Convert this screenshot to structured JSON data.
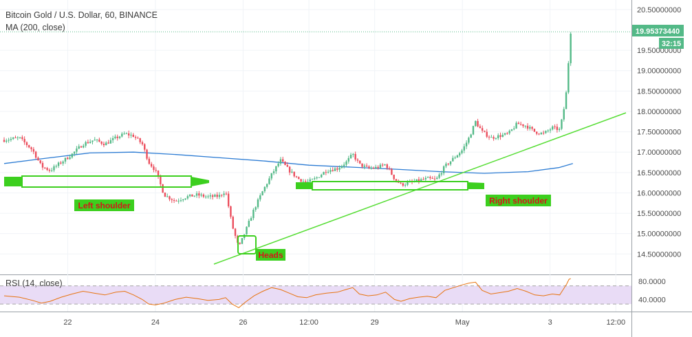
{
  "header": {
    "title": "Bitcoin Gold / U.S. Dollar, 60, BINANCE",
    "ma_label": "MA (200, close)"
  },
  "price_tag": {
    "value": "19.95373440",
    "timer": "32:15"
  },
  "rsi_label": "RSI (14, close)",
  "annotations": {
    "left_shoulder": "Left shoulder",
    "heads": "Heads",
    "right_shoulder": "Right shoulder"
  },
  "colors": {
    "up": "#53b987",
    "down": "#eb4d5c",
    "ma": "#2b7bd3",
    "trend": "#55dd33",
    "label_bg": "#3ccf1e",
    "label_text": "#d4161a",
    "rsi_line": "#e8730e",
    "rsi_band": "#e9dcf6",
    "price_tag": "#53b987"
  },
  "chart_data": [
    {
      "type": "candlestick",
      "title": "Bitcoin Gold / U.S. Dollar, 60, BINANCE",
      "y_ticks": [
        "14.50000000",
        "15.00000000",
        "15.50000000",
        "16.00000000",
        "16.50000000",
        "17.00000000",
        "17.50000000",
        "18.00000000",
        "18.50000000",
        "19.00000000",
        "19.50000000",
        "20.50000000"
      ],
      "ylim": [
        14.1,
        20.65
      ],
      "x_ticks": [
        {
          "label": "22",
          "x": 2
        },
        {
          "label": "24",
          "x": 4
        },
        {
          "label": "26",
          "x": 6
        },
        {
          "label": "12:00",
          "x": 7.5
        },
        {
          "label": "29",
          "x": 9
        },
        {
          "label": "May",
          "x": 11
        },
        {
          "label": "3",
          "x": 13
        },
        {
          "label": "12:00",
          "x": 14.5
        }
      ],
      "xlim": [
        0.55,
        14.95
      ],
      "last_price": 19.9537344,
      "series": [
        {
          "name": "MA (200, close)",
          "kind": "line",
          "points": [
            [
              0.55,
              16.72
            ],
            [
              1.5,
              16.85
            ],
            [
              2.5,
              16.98
            ],
            [
              3.5,
              17.0
            ],
            [
              4.5,
              16.94
            ],
            [
              5.5,
              16.86
            ],
            [
              6.5,
              16.78
            ],
            [
              7.5,
              16.68
            ],
            [
              8.5,
              16.63
            ],
            [
              9.5,
              16.58
            ],
            [
              10.5,
              16.52
            ],
            [
              11.5,
              16.48
            ],
            [
              12.5,
              16.52
            ],
            [
              13.2,
              16.62
            ],
            [
              13.52,
              16.72
            ]
          ]
        },
        {
          "name": "price",
          "kind": "candles",
          "points": [
            [
              0.55,
              17.3
            ],
            [
              0.9,
              17.35
            ],
            [
              1.2,
              17.05
            ],
            [
              1.4,
              16.65
            ],
            [
              1.6,
              16.55
            ],
            [
              1.85,
              16.75
            ],
            [
              2.1,
              16.95
            ],
            [
              2.35,
              17.2
            ],
            [
              2.6,
              17.3
            ],
            [
              2.85,
              17.2
            ],
            [
              3.1,
              17.35
            ],
            [
              3.3,
              17.45
            ],
            [
              3.5,
              17.4
            ],
            [
              3.7,
              17.2
            ],
            [
              3.85,
              16.75
            ],
            [
              4.0,
              16.55
            ],
            [
              4.2,
              15.95
            ],
            [
              4.45,
              15.8
            ],
            [
              4.7,
              15.9
            ],
            [
              4.95,
              15.95
            ],
            [
              5.2,
              15.9
            ],
            [
              5.45,
              15.92
            ],
            [
              5.6,
              16.05
            ],
            [
              5.75,
              15.2
            ],
            [
              5.9,
              14.65
            ],
            [
              6.05,
              15.05
            ],
            [
              6.25,
              15.6
            ],
            [
              6.45,
              16.05
            ],
            [
              6.65,
              16.45
            ],
            [
              6.85,
              16.8
            ],
            [
              7.05,
              16.55
            ],
            [
              7.25,
              16.35
            ],
            [
              7.45,
              16.25
            ],
            [
              7.65,
              16.35
            ],
            [
              7.9,
              16.55
            ],
            [
              8.15,
              16.6
            ],
            [
              8.35,
              16.75
            ],
            [
              8.5,
              16.95
            ],
            [
              8.65,
              16.7
            ],
            [
              8.85,
              16.6
            ],
            [
              9.05,
              16.62
            ],
            [
              9.25,
              16.7
            ],
            [
              9.45,
              16.35
            ],
            [
              9.6,
              16.2
            ],
            [
              9.8,
              16.25
            ],
            [
              10.0,
              16.3
            ],
            [
              10.2,
              16.35
            ],
            [
              10.4,
              16.32
            ],
            [
              10.6,
              16.65
            ],
            [
              10.8,
              16.85
            ],
            [
              11.0,
              17.05
            ],
            [
              11.15,
              17.35
            ],
            [
              11.3,
              17.75
            ],
            [
              11.45,
              17.5
            ],
            [
              11.65,
              17.35
            ],
            [
              11.85,
              17.4
            ],
            [
              12.05,
              17.45
            ],
            [
              12.25,
              17.7
            ],
            [
              12.45,
              17.65
            ],
            [
              12.65,
              17.5
            ],
            [
              12.85,
              17.45
            ],
            [
              13.05,
              17.6
            ],
            [
              13.22,
              17.55
            ],
            [
              13.3,
              17.95
            ],
            [
              13.38,
              18.55
            ],
            [
              13.43,
              19.4
            ],
            [
              13.47,
              19.95
            ]
          ]
        }
      ]
    },
    {
      "type": "line",
      "title": "RSI (14, close)",
      "y_ticks": [
        "40.0000",
        "80.0000"
      ],
      "ylim": [
        15,
        92
      ],
      "bands": [
        30,
        70
      ],
      "xlim": [
        0.55,
        14.95
      ],
      "series": [
        {
          "name": "RSI (14, close)",
          "values": [
            [
              0.55,
              48
            ],
            [
              0.9,
              45
            ],
            [
              1.2,
              38
            ],
            [
              1.4,
              32
            ],
            [
              1.6,
              36
            ],
            [
              1.85,
              45
            ],
            [
              2.1,
              52
            ],
            [
              2.35,
              58
            ],
            [
              2.6,
              54
            ],
            [
              2.85,
              50
            ],
            [
              3.1,
              56
            ],
            [
              3.3,
              58
            ],
            [
              3.5,
              50
            ],
            [
              3.7,
              40
            ],
            [
              3.85,
              30
            ],
            [
              4.0,
              28
            ],
            [
              4.2,
              32
            ],
            [
              4.45,
              40
            ],
            [
              4.7,
              45
            ],
            [
              4.95,
              42
            ],
            [
              5.2,
              38
            ],
            [
              5.45,
              40
            ],
            [
              5.6,
              44
            ],
            [
              5.75,
              30
            ],
            [
              5.9,
              22
            ],
            [
              6.05,
              34
            ],
            [
              6.25,
              48
            ],
            [
              6.45,
              58
            ],
            [
              6.65,
              66
            ],
            [
              6.85,
              62
            ],
            [
              7.05,
              54
            ],
            [
              7.25,
              46
            ],
            [
              7.45,
              44
            ],
            [
              7.65,
              50
            ],
            [
              7.9,
              54
            ],
            [
              8.15,
              56
            ],
            [
              8.35,
              62
            ],
            [
              8.5,
              66
            ],
            [
              8.65,
              52
            ],
            [
              8.85,
              48
            ],
            [
              9.05,
              50
            ],
            [
              9.25,
              56
            ],
            [
              9.45,
              40
            ],
            [
              9.6,
              36
            ],
            [
              9.8,
              42
            ],
            [
              10.0,
              45
            ],
            [
              10.2,
              47
            ],
            [
              10.4,
              44
            ],
            [
              10.6,
              60
            ],
            [
              10.8,
              66
            ],
            [
              11.0,
              72
            ],
            [
              11.15,
              76
            ],
            [
              11.3,
              78
            ],
            [
              11.45,
              60
            ],
            [
              11.65,
              52
            ],
            [
              11.85,
              55
            ],
            [
              12.05,
              58
            ],
            [
              12.25,
              64
            ],
            [
              12.45,
              58
            ],
            [
              12.65,
              50
            ],
            [
              12.85,
              48
            ],
            [
              13.05,
              52
            ],
            [
              13.22,
              50
            ],
            [
              13.3,
              62
            ],
            [
              13.38,
              74
            ],
            [
              13.43,
              84
            ],
            [
              13.47,
              86
            ]
          ]
        }
      ]
    }
  ]
}
